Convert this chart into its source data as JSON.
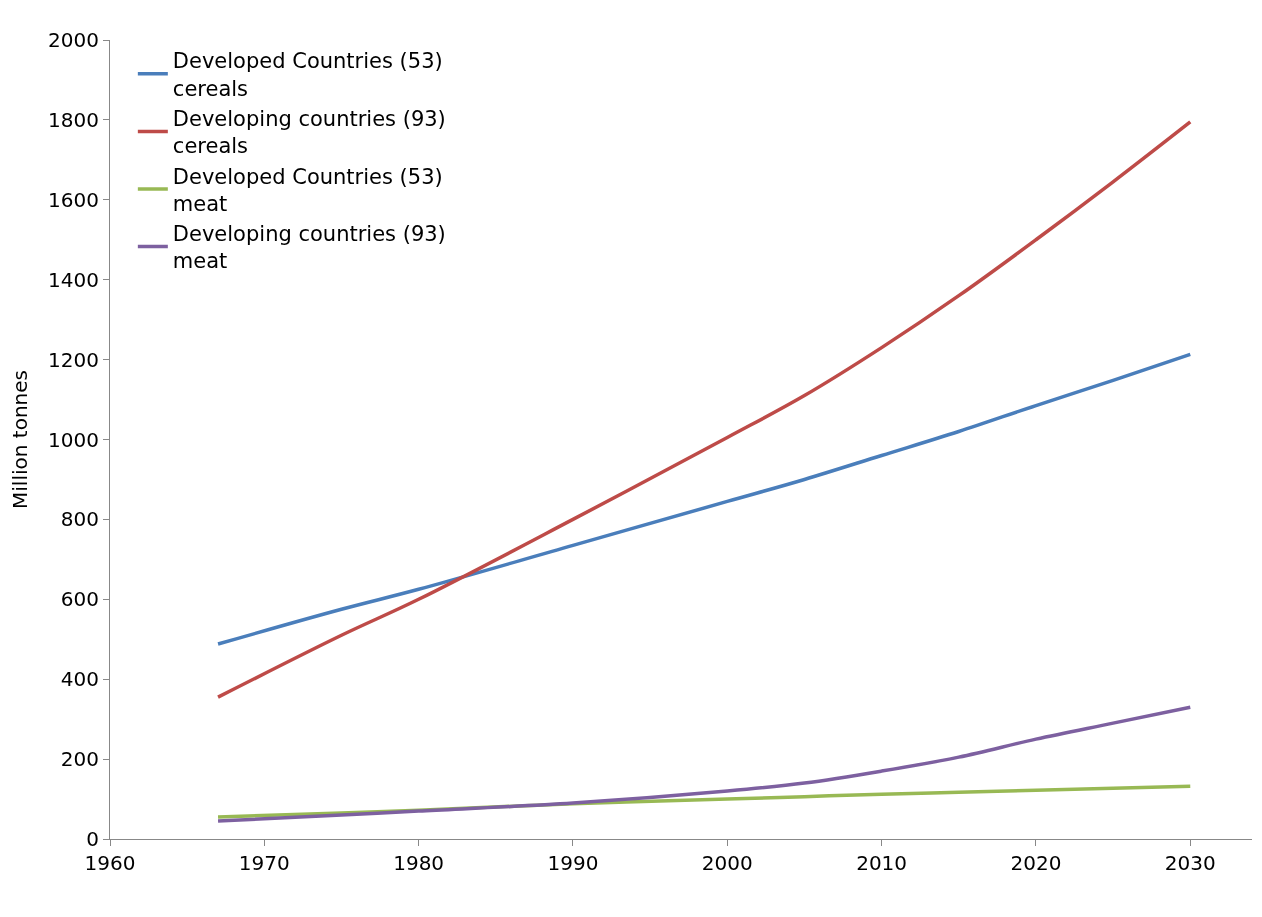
{
  "chart_data": {
    "type": "line",
    "ylabel": "Million tonnes",
    "x": [
      1967,
      1975,
      1980,
      1990,
      2000,
      2005,
      2010,
      2015,
      2020,
      2025,
      2030
    ],
    "series": [
      {
        "name": "Developed Countries (53) cereals",
        "color": "#4a7ebb",
        "values": [
          488,
          575,
          625,
          735,
          845,
          900,
          960,
          1020,
          1085,
          1148,
          1213
        ]
      },
      {
        "name": "Developing countries (93) cereals",
        "color": "#be4b48",
        "values": [
          355,
          510,
          600,
          800,
          1005,
          1110,
          1230,
          1360,
          1500,
          1645,
          1795
        ]
      },
      {
        "name": "Developed Countries (53) meat",
        "color": "#98b954",
        "values": [
          55,
          65,
          72,
          88,
          100,
          106,
          112,
          117,
          122,
          127,
          132
        ]
      },
      {
        "name": "Developing countries (93) meat",
        "color": "#7d60a0",
        "values": [
          45,
          60,
          70,
          90,
          120,
          140,
          170,
          205,
          250,
          290,
          330
        ]
      }
    ],
    "xlim": [
      1960,
      2034
    ],
    "xticks": [
      1960,
      1970,
      1980,
      1990,
      2000,
      2010,
      2020,
      2030
    ],
    "ylim": [
      0,
      2000
    ],
    "yticks": [
      0,
      200,
      400,
      600,
      800,
      1000,
      1200,
      1400,
      1600,
      1800,
      2000
    ],
    "legend": "top left",
    "marker": "none",
    "line_style": "solid"
  }
}
